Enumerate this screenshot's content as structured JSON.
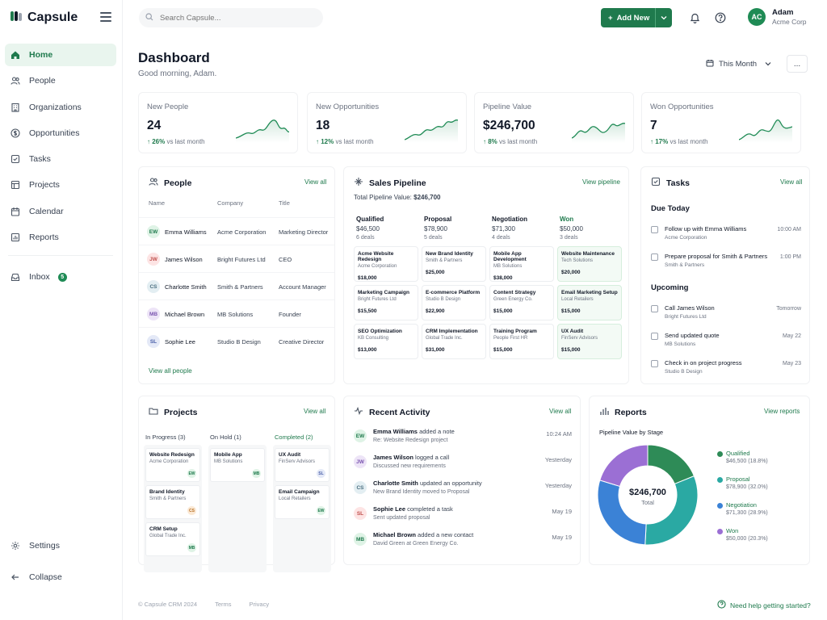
{
  "app": {
    "name": "Capsule"
  },
  "sidebar": {
    "items": [
      {
        "label": "Home",
        "icon": "home-icon"
      },
      {
        "label": "People",
        "icon": "people-icon"
      },
      {
        "label": "Organizations",
        "icon": "building-icon"
      },
      {
        "label": "Opportunities",
        "icon": "dollar-icon"
      },
      {
        "label": "Tasks",
        "icon": "checkbox-icon"
      },
      {
        "label": "Projects",
        "icon": "kanban-icon"
      },
      {
        "label": "Calendar",
        "icon": "calendar-icon"
      },
      {
        "label": "Reports",
        "icon": "report-icon"
      }
    ],
    "inbox": {
      "label": "Inbox",
      "count": "5"
    },
    "settings_label": "Settings",
    "collapse_label": "Collapse"
  },
  "topbar": {
    "search_placeholder": "Search Capsule...",
    "add_new_label": "Add New",
    "user": {
      "initials": "AC",
      "name": "Adam",
      "org": "Acme Corp"
    }
  },
  "header": {
    "title": "Dashboard",
    "greeting": "Good morning, Adam.",
    "period_label": "This Month",
    "more_label": "..."
  },
  "stats": [
    {
      "label": "New People",
      "value": "24",
      "change": "26%",
      "suffix": "vs last month"
    },
    {
      "label": "New Opportunities",
      "value": "18",
      "change": "12%",
      "suffix": "vs last month"
    },
    {
      "label": "Pipeline Value",
      "value": "$246,700",
      "change": "8%",
      "suffix": "vs last month"
    },
    {
      "label": "Won Opportunities",
      "value": "7",
      "change": "17%",
      "suffix": "vs last month"
    }
  ],
  "people": {
    "title": "People",
    "view_all": "View all",
    "columns": [
      "Name",
      "Company",
      "Title"
    ],
    "rows": [
      {
        "initials": "EW",
        "name": "Emma Williams",
        "company": "Acme Corporation",
        "title": "Marketing Director",
        "color": "#dff3e6",
        "fg": "#1f7a4d"
      },
      {
        "initials": "JW",
        "name": "James Wilson",
        "company": "Bright Futures Ltd",
        "title": "CEO",
        "color": "#fde4e4",
        "fg": "#c0504d"
      },
      {
        "initials": "CS",
        "name": "Charlotte Smith",
        "company": "Smith & Partners",
        "title": "Account Manager",
        "color": "#e3eef2",
        "fg": "#4b6f80"
      },
      {
        "initials": "MB",
        "name": "Michael Brown",
        "company": "MB Solutions",
        "title": "Founder",
        "color": "#ede4f7",
        "fg": "#7b55b0"
      },
      {
        "initials": "SL",
        "name": "Sophie Lee",
        "company": "Studio B Design",
        "title": "Creative Director",
        "color": "#e4e9f7",
        "fg": "#4a5fa8"
      }
    ],
    "footer_link": "View all people"
  },
  "pipeline": {
    "title": "Sales Pipeline",
    "view_link": "View pipeline",
    "total_label": "Total Pipeline Value:",
    "total_value": "$246,700",
    "stages": [
      {
        "name": "Qualified",
        "amount": "$46,500",
        "count": "6 deals",
        "deals": [
          {
            "name": "Acme Website Redesign",
            "company": "Acme Corporation",
            "amount": "$18,000"
          },
          {
            "name": "Marketing Campaign",
            "company": "Bright Futures Ltd",
            "amount": "$15,500"
          },
          {
            "name": "SEO Optimization",
            "company": "KB Consulting",
            "amount": "$13,000"
          }
        ]
      },
      {
        "name": "Proposal",
        "amount": "$78,900",
        "count": "5 deals",
        "deals": [
          {
            "name": "New Brand Identity",
            "company": "Smith & Partners",
            "amount": "$25,000"
          },
          {
            "name": "E-commerce Platform",
            "company": "Studio B Design",
            "amount": "$22,900"
          },
          {
            "name": "CRM Implementation",
            "company": "Global Trade Inc.",
            "amount": "$31,000"
          }
        ]
      },
      {
        "name": "Negotiation",
        "amount": "$71,300",
        "count": "4 deals",
        "deals": [
          {
            "name": "Mobile App Development",
            "company": "MB Solutions",
            "amount": "$38,000"
          },
          {
            "name": "Content Strategy",
            "company": "Green Energy Co.",
            "amount": "$15,000"
          },
          {
            "name": "Training Program",
            "company": "People First HR",
            "amount": "$15,000"
          }
        ]
      },
      {
        "name": "Won",
        "amount": "$50,000",
        "count": "3 deals",
        "deals": [
          {
            "name": "Website Maintenance",
            "company": "Tech Solutions",
            "amount": "$20,000"
          },
          {
            "name": "Email Marketing Setup",
            "company": "Local Retailers",
            "amount": "$15,000"
          },
          {
            "name": "UX Audit",
            "company": "FinServ Advisors",
            "amount": "$15,000"
          }
        ]
      }
    ]
  },
  "tasks": {
    "title": "Tasks",
    "view_all": "View all",
    "due_today_label": "Due Today",
    "upcoming_label": "Upcoming",
    "due_today": [
      {
        "title": "Follow up with Emma Williams",
        "sub": "Acme Corporation",
        "time": "10:00 AM"
      },
      {
        "title": "Prepare proposal for Smith & Partners",
        "sub": "Smith & Partners",
        "time": "1:00 PM"
      }
    ],
    "upcoming": [
      {
        "title": "Call James Wilson",
        "sub": "Bright Futures Ltd",
        "time": "Tomorrow"
      },
      {
        "title": "Send updated quote",
        "sub": "MB Solutions",
        "time": "May 22"
      },
      {
        "title": "Check in on project progress",
        "sub": "Studio B Design",
        "time": "May 23"
      }
    ]
  },
  "projects": {
    "title": "Projects",
    "view_all": "View all",
    "columns": [
      {
        "title": "In Progress (3)",
        "cards": [
          {
            "name": "Website Redesign",
            "company": "Acme Corporation",
            "initials": "EW"
          },
          {
            "name": "Brand Identity",
            "company": "Smith & Partners",
            "initials": "CS"
          },
          {
            "name": "CRM Setup",
            "company": "Global Trade Inc.",
            "initials": "MB"
          }
        ]
      },
      {
        "title": "On Hold (1)",
        "cards": [
          {
            "name": "Mobile App",
            "company": "MB Solutions",
            "initials": "MB"
          }
        ]
      },
      {
        "title": "Completed (2)",
        "cards": [
          {
            "name": "UX Audit",
            "company": "FinServ Advisors",
            "initials": "SL"
          },
          {
            "name": "Email Campaign",
            "company": "Local Retailers",
            "initials": "EW"
          }
        ]
      }
    ]
  },
  "activity": {
    "title": "Recent Activity",
    "view_all": "View all",
    "items": [
      {
        "initials": "EW",
        "actor": "Emma Williams",
        "action": "added a note",
        "sub": "Re: Website Redesign project",
        "time": "10:24 AM",
        "color": "#dff3e6",
        "fg": "#1f7a4d"
      },
      {
        "initials": "JW",
        "actor": "James Wilson",
        "action": "logged a call",
        "sub": "Discussed new requirements",
        "time": "Yesterday",
        "color": "#ede4f7",
        "fg": "#7b55b0"
      },
      {
        "initials": "CS",
        "actor": "Charlotte Smith",
        "action": "updated an opportunity",
        "sub": "New Brand Identity moved to Proposal",
        "time": "Yesterday",
        "color": "#e3eef2",
        "fg": "#4b6f80"
      },
      {
        "initials": "SL",
        "actor": "Sophie Lee",
        "action": "completed a task",
        "sub": "Sent updated proposal",
        "time": "May 19",
        "color": "#fde4e4",
        "fg": "#c0504d"
      },
      {
        "initials": "MB",
        "actor": "Michael Brown",
        "action": "added a new contact",
        "sub": "David Green at Green Energy Co.",
        "time": "May 19",
        "color": "#dff3e6",
        "fg": "#1f7a4d"
      }
    ]
  },
  "reports": {
    "title": "Reports",
    "view_link": "View reports",
    "chart_title": "Pipeline Value by Stage",
    "center_value": "$246,700",
    "center_label": "Total"
  },
  "chart_data": {
    "type": "pie",
    "title": "Pipeline Value by Stage",
    "categories": [
      "Qualified",
      "Proposal",
      "Negotiation",
      "Won"
    ],
    "values": [
      46500,
      78900,
      71300,
      50000
    ],
    "percent_labels": [
      "$46,500 (18.8%)",
      "$78,900 (32.0%)",
      "$71,300 (28.9%)",
      "$50,000 (20.3%)"
    ],
    "colors": [
      "#2e8b57",
      "#2aa9a3",
      "#3b82d6",
      "#9b6fd4"
    ],
    "legend": "right"
  },
  "footer": {
    "copyright": "© Capsule CRM 2024",
    "terms": "Terms",
    "privacy": "Privacy",
    "help": "Need help getting started?"
  }
}
